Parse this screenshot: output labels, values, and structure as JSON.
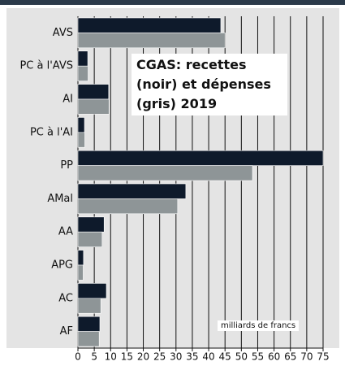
{
  "chart_data": {
    "type": "hbar",
    "title": "CGAS: recettes (noir) et dépenses (gris) 2019",
    "annotation": "milliards de francs",
    "categories": [
      "AVS",
      "PC à l'AVS",
      "AI",
      "PC à l'AI",
      "PP",
      "AMal",
      "AA",
      "APG",
      "AC",
      "AF"
    ],
    "series": [
      {
        "color": "#0e1a2b",
        "values": [
          43.7,
          3.0,
          9.4,
          2.0,
          75,
          33.0,
          8.0,
          1.7,
          8.7,
          6.7
        ]
      },
      {
        "color": "#8e9597",
        "values": [
          45.0,
          3.1,
          9.5,
          2.1,
          53.4,
          30.5,
          7.4,
          1.6,
          7.0,
          6.5
        ]
      }
    ],
    "xlim": [
      0,
      75
    ],
    "xticks": [
      0,
      5,
      10,
      15,
      20,
      25,
      30,
      35,
      40,
      45,
      50,
      55,
      60,
      65,
      70,
      75
    ],
    "grid": true
  }
}
